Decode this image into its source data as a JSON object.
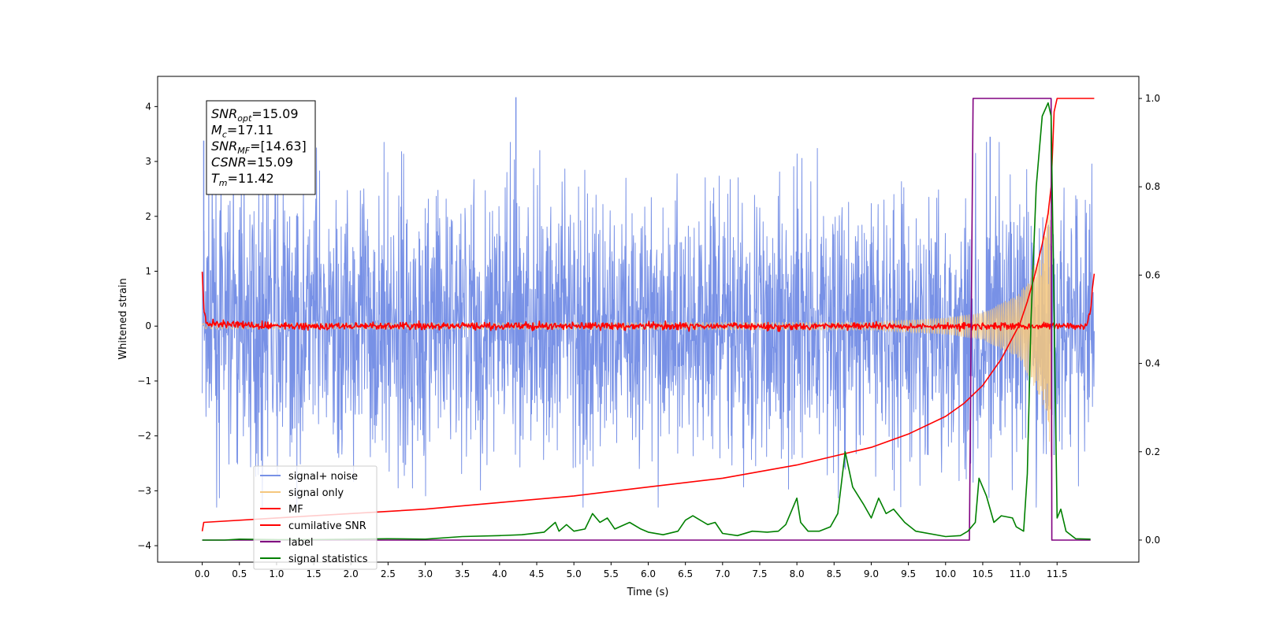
{
  "chart_data": {
    "type": "line",
    "xlabel": "Time (s)",
    "ylabel": "Whitened strain",
    "xlim": [
      -0.6,
      12.6
    ],
    "ylim": [
      -4.3,
      4.55
    ],
    "y2lim": [
      -0.05,
      1.05
    ],
    "x_ticks": [
      0.0,
      0.5,
      1.0,
      1.5,
      2.0,
      2.5,
      3.0,
      3.5,
      4.0,
      4.5,
      5.0,
      5.5,
      6.0,
      6.5,
      7.0,
      7.5,
      8.0,
      8.5,
      9.0,
      9.5,
      10.0,
      10.5,
      11.0,
      11.5
    ],
    "x_tick_labels": [
      "0.0",
      "0.5",
      "1.0",
      "1.5",
      "2.0",
      "2.5",
      "3.0",
      "3.5",
      "4.0",
      "4.5",
      "5.0",
      "5.5",
      "6.0",
      "6.5",
      "7.0",
      "7.5",
      "8.0",
      "8.5",
      "9.0",
      "9.5",
      "10.0",
      "10.5",
      "11.0",
      "11.5"
    ],
    "y_ticks": [
      4,
      3,
      2,
      1,
      0,
      -1,
      -2,
      -3,
      -4
    ],
    "y_tick_labels": [
      "4",
      "3",
      "2",
      "1",
      "0",
      "−1",
      "−2",
      "−3",
      "−4"
    ],
    "y2_ticks": [
      1.0,
      0.8,
      0.6,
      0.4,
      0.2,
      0.0
    ],
    "y2_tick_labels": [
      "1.0",
      "0.8",
      "0.6",
      "0.4",
      "0.2",
      "0.0"
    ],
    "grid": false,
    "legend_position": "lower-left",
    "annotation": {
      "position": "top-left",
      "lines": [
        {
          "sym": "SNR",
          "sub": "opt",
          "val": "=15.09"
        },
        {
          "sym": "M",
          "sub": "c",
          "val": "=17.11"
        },
        {
          "sym": "SNR",
          "sub": "MF",
          "val": "=[14.63]"
        },
        {
          "sym": "CSNR",
          "sub": "",
          "val": "=15.09"
        },
        {
          "sym": "T",
          "sub": "m",
          "val": "=11.42"
        }
      ]
    },
    "series": [
      {
        "name": "signal+ noise",
        "axis": "left",
        "color": "#7891e6",
        "kind": "noise-band",
        "x_range": [
          0.0,
          12.0
        ],
        "typical_amplitude": 2.0,
        "extremes": [
          [
            0.02,
            3.38
          ],
          [
            4.22,
            4.17
          ],
          [
            10.6,
            3.45
          ],
          [
            11.46,
            -2.35
          ]
        ]
      },
      {
        "name": "signal only",
        "axis": "left",
        "color": "#f5c77e",
        "kind": "chirp",
        "x_range": [
          0.0,
          11.42
        ],
        "envelope": [
          [
            0.0,
            0.05
          ],
          [
            9.0,
            0.07
          ],
          [
            10.0,
            0.15
          ],
          [
            10.5,
            0.25
          ],
          [
            11.0,
            0.6
          ],
          [
            11.3,
            1.4
          ],
          [
            11.42,
            2.4
          ]
        ]
      },
      {
        "name": "MF",
        "axis": "left",
        "color": "#ff0000",
        "kind": "noisy-line",
        "x_range": [
          0.0,
          12.0
        ],
        "points": [
          [
            0.0,
            1.0
          ],
          [
            0.02,
            0.35
          ],
          [
            0.05,
            0.05
          ],
          [
            1.0,
            0.0
          ],
          [
            11.9,
            0.0
          ],
          [
            11.95,
            0.3
          ],
          [
            12.0,
            0.97
          ]
        ],
        "noise_amplitude": 0.06
      },
      {
        "name": "cumilative SNR",
        "axis": "right",
        "color": "#ff0000",
        "kind": "line",
        "points": [
          [
            0.0,
            0.02
          ],
          [
            0.02,
            0.04
          ],
          [
            1.0,
            0.05
          ],
          [
            2.0,
            0.06
          ],
          [
            3.0,
            0.07
          ],
          [
            4.0,
            0.085
          ],
          [
            5.0,
            0.1
          ],
          [
            6.0,
            0.12
          ],
          [
            7.0,
            0.14
          ],
          [
            8.0,
            0.17
          ],
          [
            8.5,
            0.19
          ],
          [
            9.0,
            0.21
          ],
          [
            9.5,
            0.24
          ],
          [
            10.0,
            0.28
          ],
          [
            10.25,
            0.31
          ],
          [
            10.5,
            0.35
          ],
          [
            10.75,
            0.41
          ],
          [
            11.0,
            0.49
          ],
          [
            11.1,
            0.54
          ],
          [
            11.2,
            0.6
          ],
          [
            11.3,
            0.67
          ],
          [
            11.38,
            0.74
          ],
          [
            11.42,
            0.8
          ],
          [
            11.46,
            0.97
          ],
          [
            11.5,
            1.0
          ],
          [
            12.0,
            1.0
          ]
        ]
      },
      {
        "name": "label",
        "axis": "right",
        "color": "#800080",
        "kind": "line",
        "points": [
          [
            0.0,
            0.0
          ],
          [
            10.32,
            0.0
          ],
          [
            10.37,
            1.0
          ],
          [
            11.42,
            1.0
          ],
          [
            11.43,
            0.0
          ],
          [
            11.95,
            0.0
          ]
        ]
      },
      {
        "name": "signal statistics",
        "axis": "right",
        "color": "#008000",
        "kind": "line",
        "points": [
          [
            0.0,
            0.0
          ],
          [
            0.3,
            0.0
          ],
          [
            0.5,
            0.002
          ],
          [
            1.0,
            0.001
          ],
          [
            1.5,
            0.001
          ],
          [
            2.0,
            0.002
          ],
          [
            2.5,
            0.003
          ],
          [
            3.0,
            0.002
          ],
          [
            3.5,
            0.008
          ],
          [
            4.0,
            0.01
          ],
          [
            4.3,
            0.012
          ],
          [
            4.6,
            0.018
          ],
          [
            4.75,
            0.04
          ],
          [
            4.8,
            0.02
          ],
          [
            4.9,
            0.035
          ],
          [
            5.0,
            0.02
          ],
          [
            5.15,
            0.025
          ],
          [
            5.25,
            0.06
          ],
          [
            5.35,
            0.04
          ],
          [
            5.45,
            0.05
          ],
          [
            5.55,
            0.025
          ],
          [
            5.75,
            0.04
          ],
          [
            5.9,
            0.025
          ],
          [
            6.0,
            0.018
          ],
          [
            6.2,
            0.012
          ],
          [
            6.4,
            0.02
          ],
          [
            6.5,
            0.045
          ],
          [
            6.6,
            0.055
          ],
          [
            6.7,
            0.045
          ],
          [
            6.8,
            0.035
          ],
          [
            6.9,
            0.04
          ],
          [
            7.0,
            0.015
          ],
          [
            7.2,
            0.01
          ],
          [
            7.4,
            0.02
          ],
          [
            7.6,
            0.018
          ],
          [
            7.75,
            0.02
          ],
          [
            7.85,
            0.035
          ],
          [
            8.0,
            0.095
          ],
          [
            8.05,
            0.04
          ],
          [
            8.15,
            0.02
          ],
          [
            8.3,
            0.02
          ],
          [
            8.45,
            0.03
          ],
          [
            8.55,
            0.06
          ],
          [
            8.65,
            0.2
          ],
          [
            8.75,
            0.12
          ],
          [
            8.9,
            0.08
          ],
          [
            9.0,
            0.05
          ],
          [
            9.1,
            0.095
          ],
          [
            9.2,
            0.06
          ],
          [
            9.3,
            0.07
          ],
          [
            9.45,
            0.04
          ],
          [
            9.6,
            0.02
          ],
          [
            10.0,
            0.008
          ],
          [
            10.2,
            0.01
          ],
          [
            10.3,
            0.02
          ],
          [
            10.4,
            0.04
          ],
          [
            10.45,
            0.14
          ],
          [
            10.55,
            0.1
          ],
          [
            10.65,
            0.04
          ],
          [
            10.75,
            0.055
          ],
          [
            10.9,
            0.05
          ],
          [
            10.95,
            0.03
          ],
          [
            11.05,
            0.02
          ],
          [
            11.1,
            0.15
          ],
          [
            11.15,
            0.5
          ],
          [
            11.22,
            0.8
          ],
          [
            11.3,
            0.96
          ],
          [
            11.38,
            0.99
          ],
          [
            11.42,
            0.96
          ],
          [
            11.5,
            0.05
          ],
          [
            11.55,
            0.07
          ],
          [
            11.62,
            0.02
          ],
          [
            11.75,
            0.003
          ],
          [
            11.95,
            0.002
          ]
        ]
      }
    ]
  }
}
